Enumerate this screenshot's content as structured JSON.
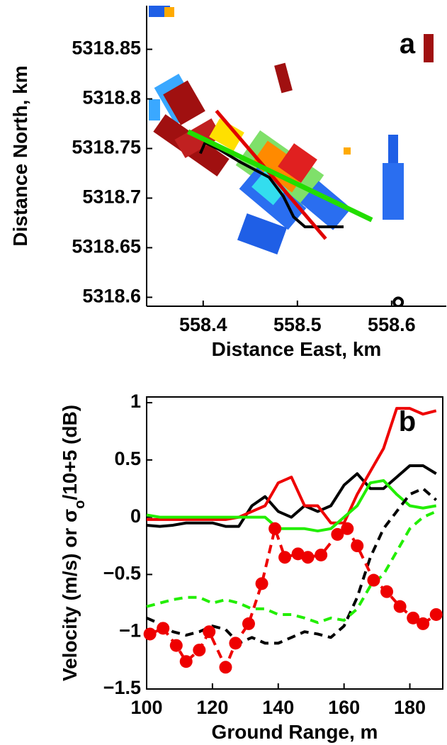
{
  "chart_data": [
    {
      "type": "line",
      "xlabel": "Distance East, km",
      "ylabel": "Distance North, km",
      "annotation": "a",
      "xlim": [
        558.34,
        558.658
      ],
      "ylim": [
        5318.591,
        5318.894
      ],
      "xticks": [
        558.4,
        558.5,
        558.6
      ],
      "yticks": [
        5318.6,
        5318.65,
        5318.7,
        5318.75,
        5318.8,
        5318.85
      ],
      "series": [
        {
          "color": "#000000",
          "width": 4,
          "x": [
            558.397,
            558.402,
            558.417,
            558.44,
            558.47,
            558.485,
            558.496,
            558.508,
            558.549
          ],
          "values": [
            5318.745,
            5318.756,
            5318.749,
            5318.736,
            5318.721,
            5318.702,
            5318.681,
            5318.671,
            5318.671
          ]
        },
        {
          "color": "#e00000",
          "width": 5,
          "x": [
            558.414,
            558.53
          ],
          "values": [
            5318.788,
            5318.659
          ]
        },
        {
          "color": "#22dd00",
          "width": 7,
          "x": [
            558.384,
            558.579
          ],
          "values": [
            5318.767,
            5318.678
          ]
        },
        {
          "color": "#000000",
          "marker": "ring",
          "x": [
            558.607
          ],
          "values": [
            5318.595
          ]
        }
      ]
    },
    {
      "type": "line",
      "xlabel": "Ground Range, m",
      "ylabel": [
        "Velocity (m/s) or σ",
        "o",
        "/10+5 (dB)"
      ],
      "annotation": "b",
      "xlim": [
        100,
        190
      ],
      "ylim": [
        -1.5,
        1.05
      ],
      "xticks": [
        100,
        120,
        140,
        160,
        180
      ],
      "yticks": [
        {
          "value": -1.5,
          "label": "−1.5"
        },
        {
          "value": -1,
          "label": "−1"
        },
        {
          "value": -0.5,
          "label": "−0.5"
        },
        0,
        0.5,
        1
      ],
      "x": [
        100,
        104,
        108,
        112,
        116,
        120,
        124,
        128,
        132,
        136,
        140,
        144,
        148,
        152,
        156,
        160,
        164,
        168,
        172,
        176,
        180,
        184,
        188
      ],
      "series": [
        {
          "color": "#000000",
          "values": [
            -0.07,
            -0.08,
            -0.07,
            -0.05,
            -0.05,
            -0.05,
            -0.08,
            -0.08,
            0.1,
            0.18,
            0.05,
            0.0,
            0.1,
            0.05,
            0.1,
            0.28,
            0.38,
            0.25,
            0.25,
            0.35,
            0.45,
            0.45,
            0.38
          ]
        },
        {
          "color": "#ee0000",
          "values": [
            -0.02,
            -0.02,
            -0.02,
            -0.02,
            -0.02,
            -0.02,
            -0.02,
            0.0,
            0.05,
            0.1,
            0.3,
            0.35,
            0.1,
            0.1,
            -0.05,
            -0.05,
            0.2,
            0.4,
            0.6,
            0.95,
            0.95,
            0.9,
            0.93
          ]
        },
        {
          "color": "#22ee00",
          "values": [
            0.02,
            0.0,
            0.0,
            0.0,
            0.0,
            0.0,
            0.0,
            0.0,
            0.0,
            0.0,
            -0.1,
            -0.1,
            -0.1,
            -0.12,
            -0.1,
            0.0,
            0.1,
            0.3,
            0.32,
            0.2,
            0.1,
            0.08,
            0.1
          ]
        },
        {
          "color": "#000000",
          "dash": true,
          "values": [
            -0.88,
            -0.93,
            -1.0,
            -1.03,
            -1.0,
            -0.95,
            -0.98,
            -1.1,
            -1.05,
            -1.1,
            -1.1,
            -1.05,
            -1.0,
            -1.02,
            -1.05,
            -0.95,
            -0.7,
            -0.35,
            -0.1,
            0.05,
            0.2,
            0.25,
            0.15
          ]
        },
        {
          "color": "#22ee00",
          "dash": true,
          "values": [
            -0.78,
            -0.75,
            -0.72,
            -0.7,
            -0.7,
            -0.75,
            -0.72,
            -0.75,
            -0.8,
            -0.8,
            -0.85,
            -0.85,
            -0.88,
            -0.92,
            -0.88,
            -0.9,
            -0.8,
            -0.6,
            -0.5,
            -0.3,
            -0.1,
            0.0,
            0.05
          ]
        },
        {
          "color": "#ee0000",
          "dash": true,
          "marker": "dot",
          "x": [
            101,
            105,
            109,
            112,
            116,
            119,
            124,
            127,
            131,
            135,
            139,
            142,
            146,
            149,
            153,
            158,
            161,
            164,
            169,
            173,
            177,
            181,
            184,
            188
          ],
          "values": [
            -1.02,
            -0.97,
            -1.12,
            -1.26,
            -1.16,
            -1.0,
            -1.31,
            -1.1,
            -0.93,
            -0.58,
            -0.1,
            -0.35,
            -0.32,
            -0.35,
            -0.33,
            -0.15,
            -0.1,
            -0.25,
            -0.55,
            -0.65,
            -0.78,
            -0.88,
            -0.93,
            -0.85
          ]
        }
      ]
    }
  ]
}
